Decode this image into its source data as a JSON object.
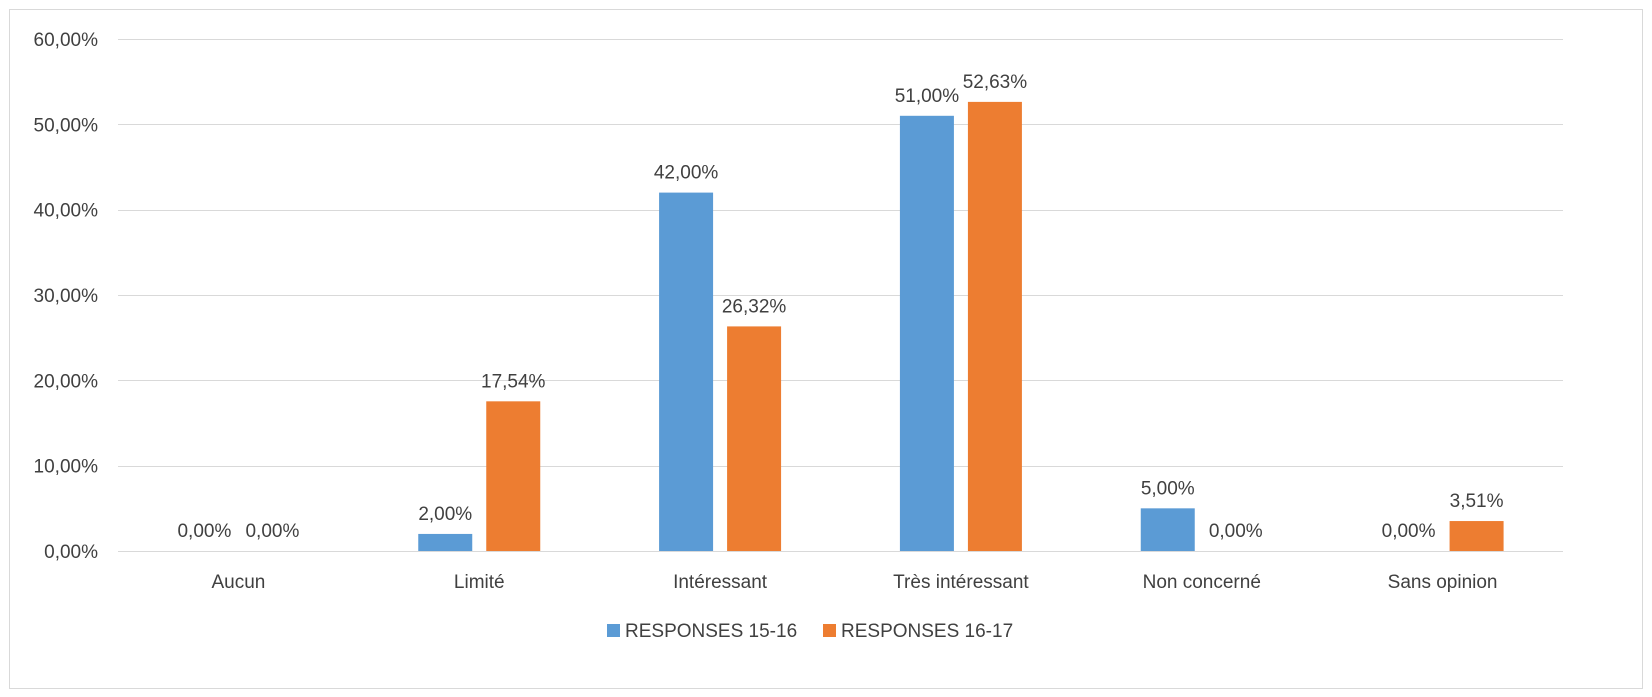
{
  "chart_data": {
    "type": "bar",
    "title": "",
    "xlabel": "",
    "ylabel": "",
    "categories": [
      "Aucun",
      "Limité",
      "Intéressant",
      "Très intéressant",
      "Non concerné",
      "Sans opinion"
    ],
    "series": [
      {
        "name": "RESPONSES 15-16",
        "color": "#5b9bd5",
        "values": [
          0.0,
          2.0,
          42.0,
          51.0,
          5.0,
          0.0
        ],
        "labels": [
          "0,00%",
          "2,00%",
          "42,00%",
          "51,00%",
          "5,00%",
          "0,00%"
        ]
      },
      {
        "name": "RESPONSES 16-17",
        "color": "#ed7d31",
        "values": [
          0.0,
          17.54,
          26.32,
          52.63,
          0.0,
          3.51
        ],
        "labels": [
          "0,00%",
          "17,54%",
          "26,32%",
          "52,63%",
          "0,00%",
          "3,51%"
        ]
      }
    ],
    "ylim": [
      0,
      60
    ],
    "yticks": [
      0,
      10,
      20,
      30,
      40,
      50,
      60
    ],
    "ytick_labels": [
      "0,00%",
      "10,00%",
      "20,00%",
      "30,00%",
      "40,00%",
      "50,00%",
      "60,00%"
    ],
    "grid": true,
    "legend_position": "bottom"
  }
}
